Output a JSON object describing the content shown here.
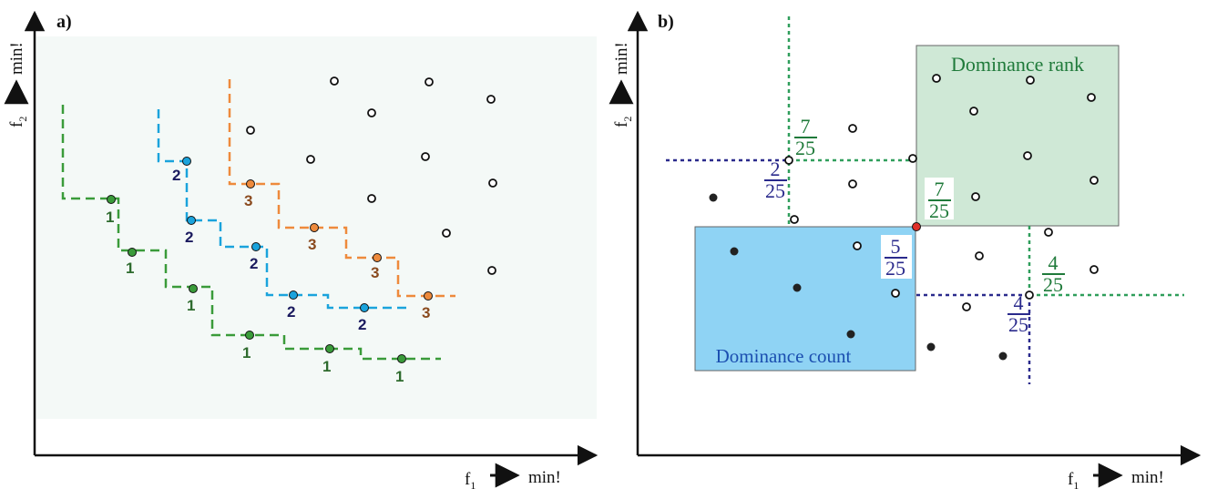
{
  "colors": {
    "axis": "#111111",
    "green": "#3a9b3a",
    "blue": "#1aa3dc",
    "orange": "#ee8a3c",
    "green_text": "#1f7a3a",
    "navy": "#2a2a8c",
    "red_point": "#e0302a",
    "rank_box_fill": "#cfe8d6",
    "count_box_fill": "#8fd3f4",
    "count_label": "#1b4fb0",
    "rank_label": "#1f7a3a",
    "panel_a_bg": "#f4f9f7"
  },
  "panel_a": {
    "label": "a)",
    "x_axis": {
      "var": "f",
      "sub": "1",
      "text": "min!"
    },
    "y_axis": {
      "var": "f",
      "sub": "2",
      "text": "min!"
    },
    "rank_labels": {
      "front1": [
        "1",
        "1",
        "1",
        "1",
        "1",
        "1"
      ],
      "front2": [
        "2",
        "2",
        "2",
        "2",
        "2"
      ],
      "front3": [
        "3",
        "3",
        "3",
        "3",
        "3"
      ]
    }
  },
  "panel_b": {
    "label": "b)",
    "x_axis": {
      "var": "f",
      "sub": "1",
      "text": "min!"
    },
    "y_axis": {
      "var": "f",
      "sub": "2",
      "text": "min!"
    },
    "rank_box_label": "Dominance rank",
    "count_box_label": "Dominance count",
    "fractions": [
      {
        "num": "7",
        "den": "25",
        "color": "green"
      },
      {
        "num": "2",
        "den": "25",
        "color": "navy"
      },
      {
        "num": "7",
        "den": "25",
        "color": "green"
      },
      {
        "num": "5",
        "den": "25",
        "color": "navy"
      },
      {
        "num": "4",
        "den": "25",
        "color": "green"
      },
      {
        "num": "4",
        "den": "25",
        "color": "navy"
      }
    ]
  }
}
